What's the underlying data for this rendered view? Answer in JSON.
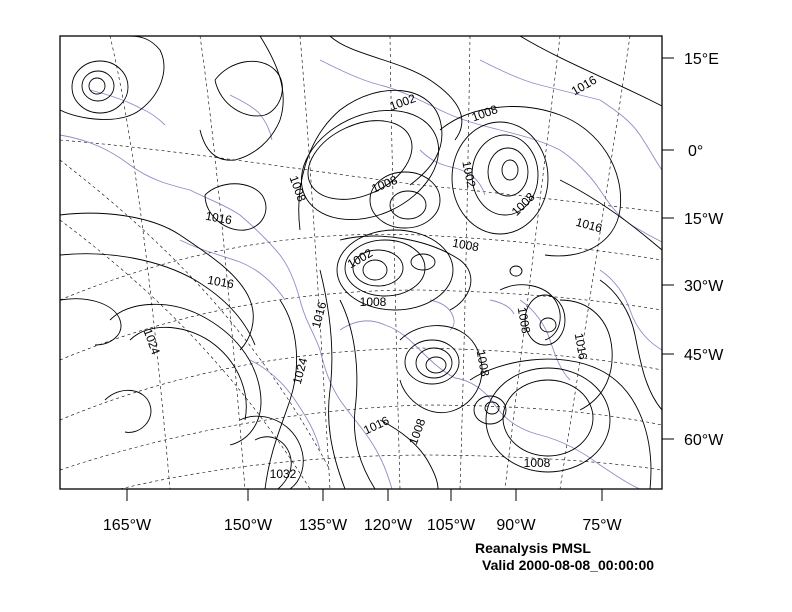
{
  "map": {
    "x_axis_labels": [
      "165°W",
      "150°W",
      "135°W",
      "120°W",
      "105°W",
      "90°W",
      "75°W"
    ],
    "y_axis_labels": [
      "15°E",
      "0°",
      "15°W",
      "30°W",
      "45°W",
      "60°W"
    ],
    "contour_labels": [
      "1002",
      "1008",
      "1016",
      "1008",
      "1008",
      "1002",
      "1008",
      "1016",
      "1016",
      "1016",
      "1002",
      "1008",
      "1008",
      "1024",
      "1016",
      "1024",
      "1008",
      "1008",
      "1016",
      "1016",
      "1008",
      "1032",
      "1008"
    ],
    "colors": {
      "contour": "#000000",
      "coastline": "#9b86c9",
      "graticule": "#000000",
      "frame": "#000000"
    }
  },
  "caption": {
    "line1": "Reanalysis PMSL",
    "line2": "Valid 2000-08-08_00:00:00"
  }
}
